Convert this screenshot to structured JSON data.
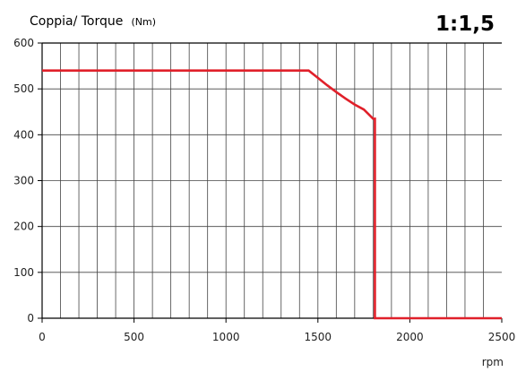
{
  "chart_data": {
    "type": "line",
    "title": "Coppia/ Torque",
    "title_unit": "(Nm)",
    "ratio_label": "1:1,5",
    "xlabel": "rpm",
    "ylabel": "",
    "xlim": [
      0,
      2500
    ],
    "ylim": [
      0,
      600
    ],
    "x_ticks": [
      0,
      500,
      1000,
      1500,
      2000,
      2500
    ],
    "y_ticks": [
      0,
      100,
      200,
      300,
      400,
      500,
      600
    ],
    "x_grid_step": 100,
    "grid": true,
    "line_color": "#e0202a",
    "series": [
      {
        "x": [
          0,
          1450,
          1500,
          1550,
          1600,
          1650,
          1700,
          1750,
          1800,
          1810,
          1810,
          2500
        ],
        "y": [
          540,
          540,
          524,
          508,
          493,
          479,
          466,
          455,
          435,
          435,
          0,
          0
        ]
      }
    ]
  }
}
